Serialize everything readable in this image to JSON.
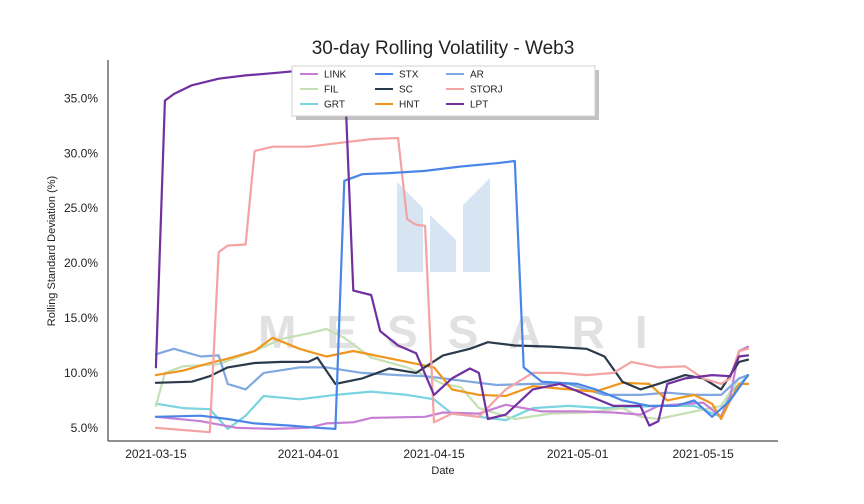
{
  "chart_data": {
    "type": "line",
    "title": "30-day Rolling Volatility - Web3",
    "xlabel": "Date",
    "ylabel": "Rolling Standard Deviation (%)",
    "x_ticks": [
      "2021-03-15",
      "2021-04-01",
      "2021-04-15",
      "2021-05-01",
      "2021-05-15"
    ],
    "y_ticks": [
      "5.0%",
      "10.0%",
      "15.0%",
      "20.0%",
      "25.0%",
      "30.0%",
      "35.0%"
    ],
    "ylim": [
      3.8,
      38.5
    ],
    "xlim": [
      "2021-03-13",
      "2021-05-20"
    ],
    "legend_position": "top",
    "watermark": "MESSARI",
    "series": [
      {
        "name": "LINK",
        "color": "#c77fd6",
        "points": [
          [
            "2021-03-15",
            6.0
          ],
          [
            "2021-03-20",
            5.6
          ],
          [
            "2021-03-24",
            5.0
          ],
          [
            "2021-03-28",
            4.9
          ],
          [
            "2021-04-01",
            5.0
          ],
          [
            "2021-04-03",
            5.4
          ],
          [
            "2021-04-06",
            5.5
          ],
          [
            "2021-04-08",
            5.9
          ],
          [
            "2021-04-14",
            6.0
          ],
          [
            "2021-04-16",
            6.4
          ],
          [
            "2021-04-20",
            6.3
          ],
          [
            "2021-04-23",
            7.1
          ],
          [
            "2021-04-27",
            6.5
          ],
          [
            "2021-05-01",
            6.5
          ],
          [
            "2021-05-05",
            6.4
          ],
          [
            "2021-05-08",
            6.2
          ],
          [
            "2021-05-10",
            7.0
          ],
          [
            "2021-05-15",
            7.3
          ],
          [
            "2021-05-17",
            6.0
          ],
          [
            "2021-05-18",
            7.8
          ],
          [
            "2021-05-19",
            12.0
          ],
          [
            "2021-05-20",
            12.4
          ]
        ]
      },
      {
        "name": "FIL",
        "color": "#c5e0b4",
        "points": [
          [
            "2021-03-15",
            7.0
          ],
          [
            "2021-03-16",
            10.0
          ],
          [
            "2021-03-18",
            10.6
          ],
          [
            "2021-03-22",
            10.8
          ],
          [
            "2021-03-26",
            12.0
          ],
          [
            "2021-03-29",
            13.1
          ],
          [
            "2021-04-01",
            13.6
          ],
          [
            "2021-04-03",
            14.0
          ],
          [
            "2021-04-05",
            13.2
          ],
          [
            "2021-04-08",
            11.4
          ],
          [
            "2021-04-12",
            10.5
          ],
          [
            "2021-04-16",
            9.0
          ],
          [
            "2021-04-18",
            8.7
          ],
          [
            "2021-04-20",
            6.8
          ],
          [
            "2021-04-24",
            5.8
          ],
          [
            "2021-04-28",
            6.3
          ],
          [
            "2021-05-02",
            6.4
          ],
          [
            "2021-05-06",
            6.8
          ],
          [
            "2021-05-08",
            6.0
          ],
          [
            "2021-05-10",
            5.8
          ],
          [
            "2021-05-14",
            6.5
          ],
          [
            "2021-05-17",
            7.0
          ],
          [
            "2021-05-19",
            9.5
          ],
          [
            "2021-05-20",
            9.7
          ]
        ]
      },
      {
        "name": "GRT",
        "color": "#7ad4e0",
        "points": [
          [
            "2021-03-15",
            7.2
          ],
          [
            "2021-03-18",
            6.8
          ],
          [
            "2021-03-21",
            6.7
          ],
          [
            "2021-03-23",
            4.9
          ],
          [
            "2021-03-25",
            6.1
          ],
          [
            "2021-03-27",
            7.9
          ],
          [
            "2021-03-31",
            7.6
          ],
          [
            "2021-04-04",
            8.0
          ],
          [
            "2021-04-08",
            8.3
          ],
          [
            "2021-04-12",
            8.0
          ],
          [
            "2021-04-15",
            7.6
          ],
          [
            "2021-04-17",
            6.3
          ],
          [
            "2021-04-20",
            6.0
          ],
          [
            "2021-04-23",
            5.7
          ],
          [
            "2021-04-26",
            6.8
          ],
          [
            "2021-04-30",
            7.0
          ],
          [
            "2021-05-04",
            6.8
          ],
          [
            "2021-05-07",
            6.9
          ],
          [
            "2021-05-10",
            7.0
          ],
          [
            "2021-05-14",
            7.0
          ],
          [
            "2021-05-17",
            6.0
          ],
          [
            "2021-05-18",
            8.2
          ],
          [
            "2021-05-20",
            9.7
          ]
        ]
      },
      {
        "name": "STX",
        "color": "#4a86e8",
        "points": [
          [
            "2021-03-15",
            6.0
          ],
          [
            "2021-03-20",
            6.1
          ],
          [
            "2021-03-23",
            5.8
          ],
          [
            "2021-03-26",
            5.4
          ],
          [
            "2021-03-30",
            5.2
          ],
          [
            "2021-04-02",
            5.0
          ],
          [
            "2021-04-04",
            4.9
          ],
          [
            "2021-04-05",
            27.5
          ],
          [
            "2021-04-07",
            28.1
          ],
          [
            "2021-04-10",
            28.2
          ],
          [
            "2021-04-14",
            28.4
          ],
          [
            "2021-04-18",
            28.8
          ],
          [
            "2021-04-22",
            29.1
          ],
          [
            "2021-04-24",
            29.3
          ],
          [
            "2021-04-25",
            10.5
          ],
          [
            "2021-04-27",
            9.2
          ],
          [
            "2021-05-01",
            9.0
          ],
          [
            "2021-05-03",
            8.5
          ],
          [
            "2021-05-06",
            7.5
          ],
          [
            "2021-05-09",
            7.0
          ],
          [
            "2021-05-12",
            7.0
          ],
          [
            "2021-05-14",
            7.5
          ],
          [
            "2021-05-16",
            6.0
          ],
          [
            "2021-05-18",
            7.5
          ],
          [
            "2021-05-20",
            9.8
          ]
        ]
      },
      {
        "name": "SC",
        "color": "#2b3a4a",
        "points": [
          [
            "2021-03-15",
            9.1
          ],
          [
            "2021-03-19",
            9.2
          ],
          [
            "2021-03-21",
            9.7
          ],
          [
            "2021-03-23",
            10.5
          ],
          [
            "2021-03-26",
            10.9
          ],
          [
            "2021-03-29",
            11.0
          ],
          [
            "2021-04-01",
            11.0
          ],
          [
            "2021-04-02",
            11.4
          ],
          [
            "2021-04-04",
            9.0
          ],
          [
            "2021-04-07",
            9.5
          ],
          [
            "2021-04-10",
            10.4
          ],
          [
            "2021-04-13",
            10.0
          ],
          [
            "2021-04-16",
            11.6
          ],
          [
            "2021-04-19",
            12.2
          ],
          [
            "2021-04-21",
            12.8
          ],
          [
            "2021-04-24",
            12.5
          ],
          [
            "2021-04-28",
            12.4
          ],
          [
            "2021-05-02",
            12.2
          ],
          [
            "2021-05-04",
            11.5
          ],
          [
            "2021-05-06",
            9.2
          ],
          [
            "2021-05-08",
            8.5
          ],
          [
            "2021-05-10",
            9.0
          ],
          [
            "2021-05-13",
            9.8
          ],
          [
            "2021-05-15",
            9.5
          ],
          [
            "2021-05-17",
            8.5
          ],
          [
            "2021-05-19",
            11.0
          ],
          [
            "2021-05-20",
            11.2
          ]
        ]
      },
      {
        "name": "HNT",
        "color": "#f0961e",
        "points": [
          [
            "2021-03-15",
            9.8
          ],
          [
            "2021-03-18",
            10.2
          ],
          [
            "2021-03-21",
            10.9
          ],
          [
            "2021-03-23",
            11.3
          ],
          [
            "2021-03-26",
            12.0
          ],
          [
            "2021-03-28",
            13.2
          ],
          [
            "2021-03-31",
            12.2
          ],
          [
            "2021-04-03",
            11.5
          ],
          [
            "2021-04-06",
            12.0
          ],
          [
            "2021-04-09",
            11.5
          ],
          [
            "2021-04-12",
            11.0
          ],
          [
            "2021-04-15",
            10.5
          ],
          [
            "2021-04-17",
            8.5
          ],
          [
            "2021-04-20",
            8.0
          ],
          [
            "2021-04-23",
            7.9
          ],
          [
            "2021-04-26",
            8.8
          ],
          [
            "2021-04-30",
            8.5
          ],
          [
            "2021-05-03",
            8.3
          ],
          [
            "2021-05-06",
            9.1
          ],
          [
            "2021-05-09",
            9.0
          ],
          [
            "2021-05-11",
            7.5
          ],
          [
            "2021-05-14",
            8.0
          ],
          [
            "2021-05-16",
            7.2
          ],
          [
            "2021-05-17",
            5.8
          ],
          [
            "2021-05-18",
            7.5
          ],
          [
            "2021-05-19",
            9.0
          ],
          [
            "2021-05-20",
            9.0
          ]
        ]
      },
      {
        "name": "AR",
        "color": "#7fa8e0",
        "points": [
          [
            "2021-03-15",
            11.7
          ],
          [
            "2021-03-17",
            12.2
          ],
          [
            "2021-03-20",
            11.5
          ],
          [
            "2021-03-22",
            11.6
          ],
          [
            "2021-03-23",
            9.0
          ],
          [
            "2021-03-25",
            8.5
          ],
          [
            "2021-03-27",
            10.0
          ],
          [
            "2021-03-31",
            10.5
          ],
          [
            "2021-04-03",
            10.5
          ],
          [
            "2021-04-07",
            10.0
          ],
          [
            "2021-04-11",
            9.8
          ],
          [
            "2021-04-14",
            9.7
          ],
          [
            "2021-04-16",
            9.5
          ],
          [
            "2021-04-19",
            9.2
          ],
          [
            "2021-04-22",
            8.9
          ],
          [
            "2021-04-26",
            9.0
          ],
          [
            "2021-04-30",
            9.0
          ],
          [
            "2021-05-04",
            8.0
          ],
          [
            "2021-05-08",
            8.0
          ],
          [
            "2021-05-11",
            8.2
          ],
          [
            "2021-05-14",
            8.0
          ],
          [
            "2021-05-17",
            8.0
          ],
          [
            "2021-05-19",
            9.5
          ],
          [
            "2021-05-20",
            9.8
          ]
        ]
      },
      {
        "name": "STORJ",
        "color": "#f4a3a3",
        "points": [
          [
            "2021-03-15",
            5.0
          ],
          [
            "2021-03-18",
            4.8
          ],
          [
            "2021-03-21",
            4.6
          ],
          [
            "2021-03-22",
            21.0
          ],
          [
            "2021-03-23",
            21.6
          ],
          [
            "2021-03-25",
            21.7
          ],
          [
            "2021-03-26",
            30.2
          ],
          [
            "2021-03-28",
            30.6
          ],
          [
            "2021-04-01",
            30.6
          ],
          [
            "2021-04-05",
            31.0
          ],
          [
            "2021-04-08",
            31.3
          ],
          [
            "2021-04-11",
            31.4
          ],
          [
            "2021-04-12",
            24.0
          ],
          [
            "2021-04-13",
            23.5
          ],
          [
            "2021-04-14",
            23.4
          ],
          [
            "2021-04-15",
            5.5
          ],
          [
            "2021-04-17",
            6.3
          ],
          [
            "2021-04-20",
            6.0
          ],
          [
            "2021-04-23",
            8.5
          ],
          [
            "2021-04-26",
            10.0
          ],
          [
            "2021-04-29",
            10.0
          ],
          [
            "2021-05-02",
            9.8
          ],
          [
            "2021-05-05",
            10.0
          ],
          [
            "2021-05-07",
            11.0
          ],
          [
            "2021-05-10",
            10.5
          ],
          [
            "2021-05-13",
            10.6
          ],
          [
            "2021-05-15",
            9.5
          ],
          [
            "2021-05-17",
            9.0
          ],
          [
            "2021-05-18",
            9.5
          ],
          [
            "2021-05-19",
            12.0
          ],
          [
            "2021-05-20",
            12.2
          ]
        ]
      },
      {
        "name": "LPT",
        "color": "#7030a0",
        "points": [
          [
            "2021-03-15",
            10.5
          ],
          [
            "2021-03-16",
            34.8
          ],
          [
            "2021-03-17",
            35.4
          ],
          [
            "2021-03-19",
            36.2
          ],
          [
            "2021-03-22",
            36.8
          ],
          [
            "2021-03-25",
            37.1
          ],
          [
            "2021-03-28",
            37.3
          ],
          [
            "2021-04-01",
            37.6
          ],
          [
            "2021-04-05",
            37.8
          ],
          [
            "2021-04-06",
            17.5
          ],
          [
            "2021-04-08",
            17.1
          ],
          [
            "2021-04-09",
            13.8
          ],
          [
            "2021-04-11",
            12.5
          ],
          [
            "2021-04-13",
            11.8
          ],
          [
            "2021-04-15",
            8.0
          ],
          [
            "2021-04-17",
            9.5
          ],
          [
            "2021-04-19",
            10.4
          ],
          [
            "2021-04-20",
            10.0
          ],
          [
            "2021-04-21",
            5.8
          ],
          [
            "2021-04-23",
            6.2
          ],
          [
            "2021-04-26",
            8.5
          ],
          [
            "2021-04-29",
            9.0
          ],
          [
            "2021-05-02",
            8.0
          ],
          [
            "2021-05-05",
            7.0
          ],
          [
            "2021-05-08",
            7.0
          ],
          [
            "2021-05-09",
            5.2
          ],
          [
            "2021-05-10",
            5.6
          ],
          [
            "2021-05-11",
            9.0
          ],
          [
            "2021-05-13",
            9.5
          ],
          [
            "2021-05-16",
            9.8
          ],
          [
            "2021-05-18",
            9.7
          ],
          [
            "2021-05-19",
            11.5
          ],
          [
            "2021-05-20",
            11.6
          ]
        ]
      }
    ]
  }
}
